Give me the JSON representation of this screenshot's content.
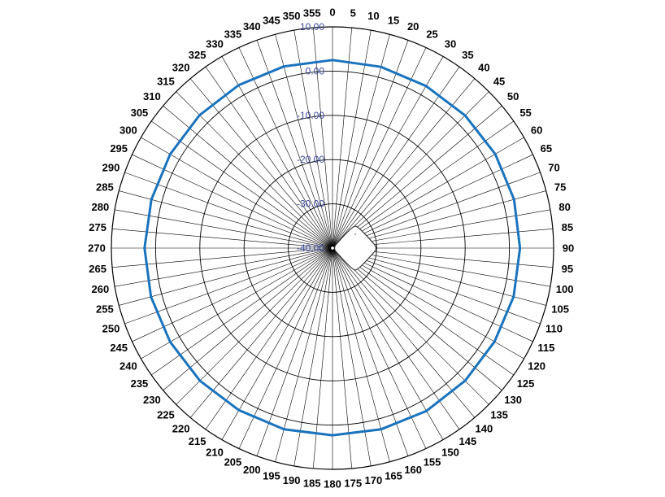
{
  "chart_data": {
    "type": "polar-line",
    "title": "",
    "angle_unit": "degrees",
    "angle_step": 5,
    "angle_labels": [
      "0",
      "5",
      "10",
      "15",
      "20",
      "25",
      "30",
      "35",
      "40",
      "45",
      "50",
      "55",
      "60",
      "65",
      "70",
      "75",
      "80",
      "85",
      "90",
      "95",
      "100",
      "105",
      "110",
      "115",
      "120",
      "125",
      "130",
      "135",
      "140",
      "145",
      "150",
      "155",
      "160",
      "165",
      "170",
      "175",
      "180",
      "185",
      "190",
      "195",
      "200",
      "205",
      "210",
      "215",
      "220",
      "225",
      "230",
      "235",
      "240",
      "245",
      "250",
      "255",
      "260",
      "265",
      "270",
      "275",
      "280",
      "285",
      "290",
      "295",
      "300",
      "305",
      "310",
      "315",
      "320",
      "325",
      "330",
      "335",
      "340",
      "345",
      "350",
      "355"
    ],
    "radial_range": [
      -40,
      10
    ],
    "radial_ticks": [
      "10.00",
      "0.00",
      "-10.00",
      "-20.00",
      "-30.00",
      "-40.00"
    ],
    "radial_tick_values": [
      10,
      0,
      -10,
      -20,
      -30,
      -40
    ],
    "grid": true,
    "series": [
      {
        "color": "#1a73bd",
        "angles": [
          0,
          15,
          30,
          45,
          60,
          75,
          90,
          105,
          120,
          135,
          150,
          165,
          180,
          195,
          210,
          225,
          240,
          255,
          270,
          285,
          300,
          315,
          330,
          345
        ],
        "values": [
          2.5,
          2.4,
          2.3,
          2.4,
          2.5,
          2.5,
          2.4,
          2.4,
          2.3,
          2.4,
          2.5,
          2.4,
          2.3,
          2.4,
          2.3,
          2.4,
          2.4,
          2.5,
          2.5,
          2.4,
          2.4,
          2.5,
          2.5,
          2.5
        ]
      }
    ]
  },
  "device_image": "access-point-device"
}
